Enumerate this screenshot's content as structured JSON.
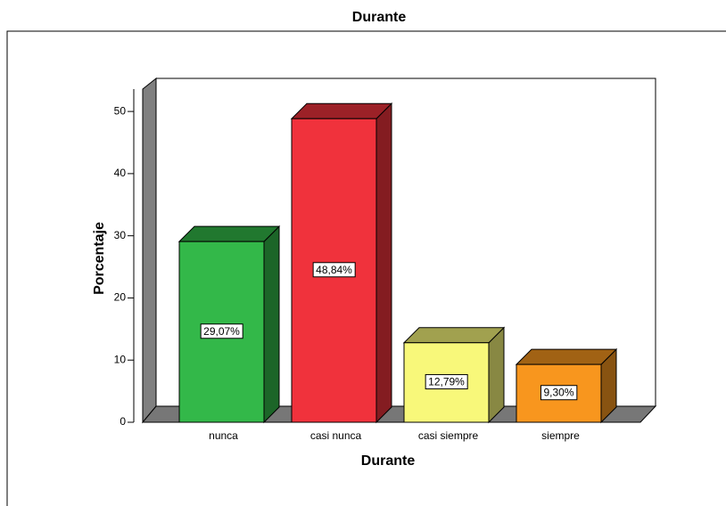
{
  "chart_data": {
    "type": "bar3d",
    "title": "Durante",
    "x_label": "Durante",
    "y_label": "Porcentaje",
    "categories": [
      "nunca",
      "casi nunca",
      "casi siempre",
      "siempre"
    ],
    "values": [
      29.07,
      48.84,
      12.79,
      9.3
    ],
    "value_labels": [
      "29,07%",
      "48,84%",
      "12,79%",
      "9,30%"
    ],
    "colors": [
      "#33b849",
      "#f0323c",
      "#f8f87a",
      "#f8961e"
    ],
    "ylim": [
      0,
      53.6
    ],
    "yticks": [
      0,
      10,
      20,
      30,
      40,
      50
    ]
  }
}
